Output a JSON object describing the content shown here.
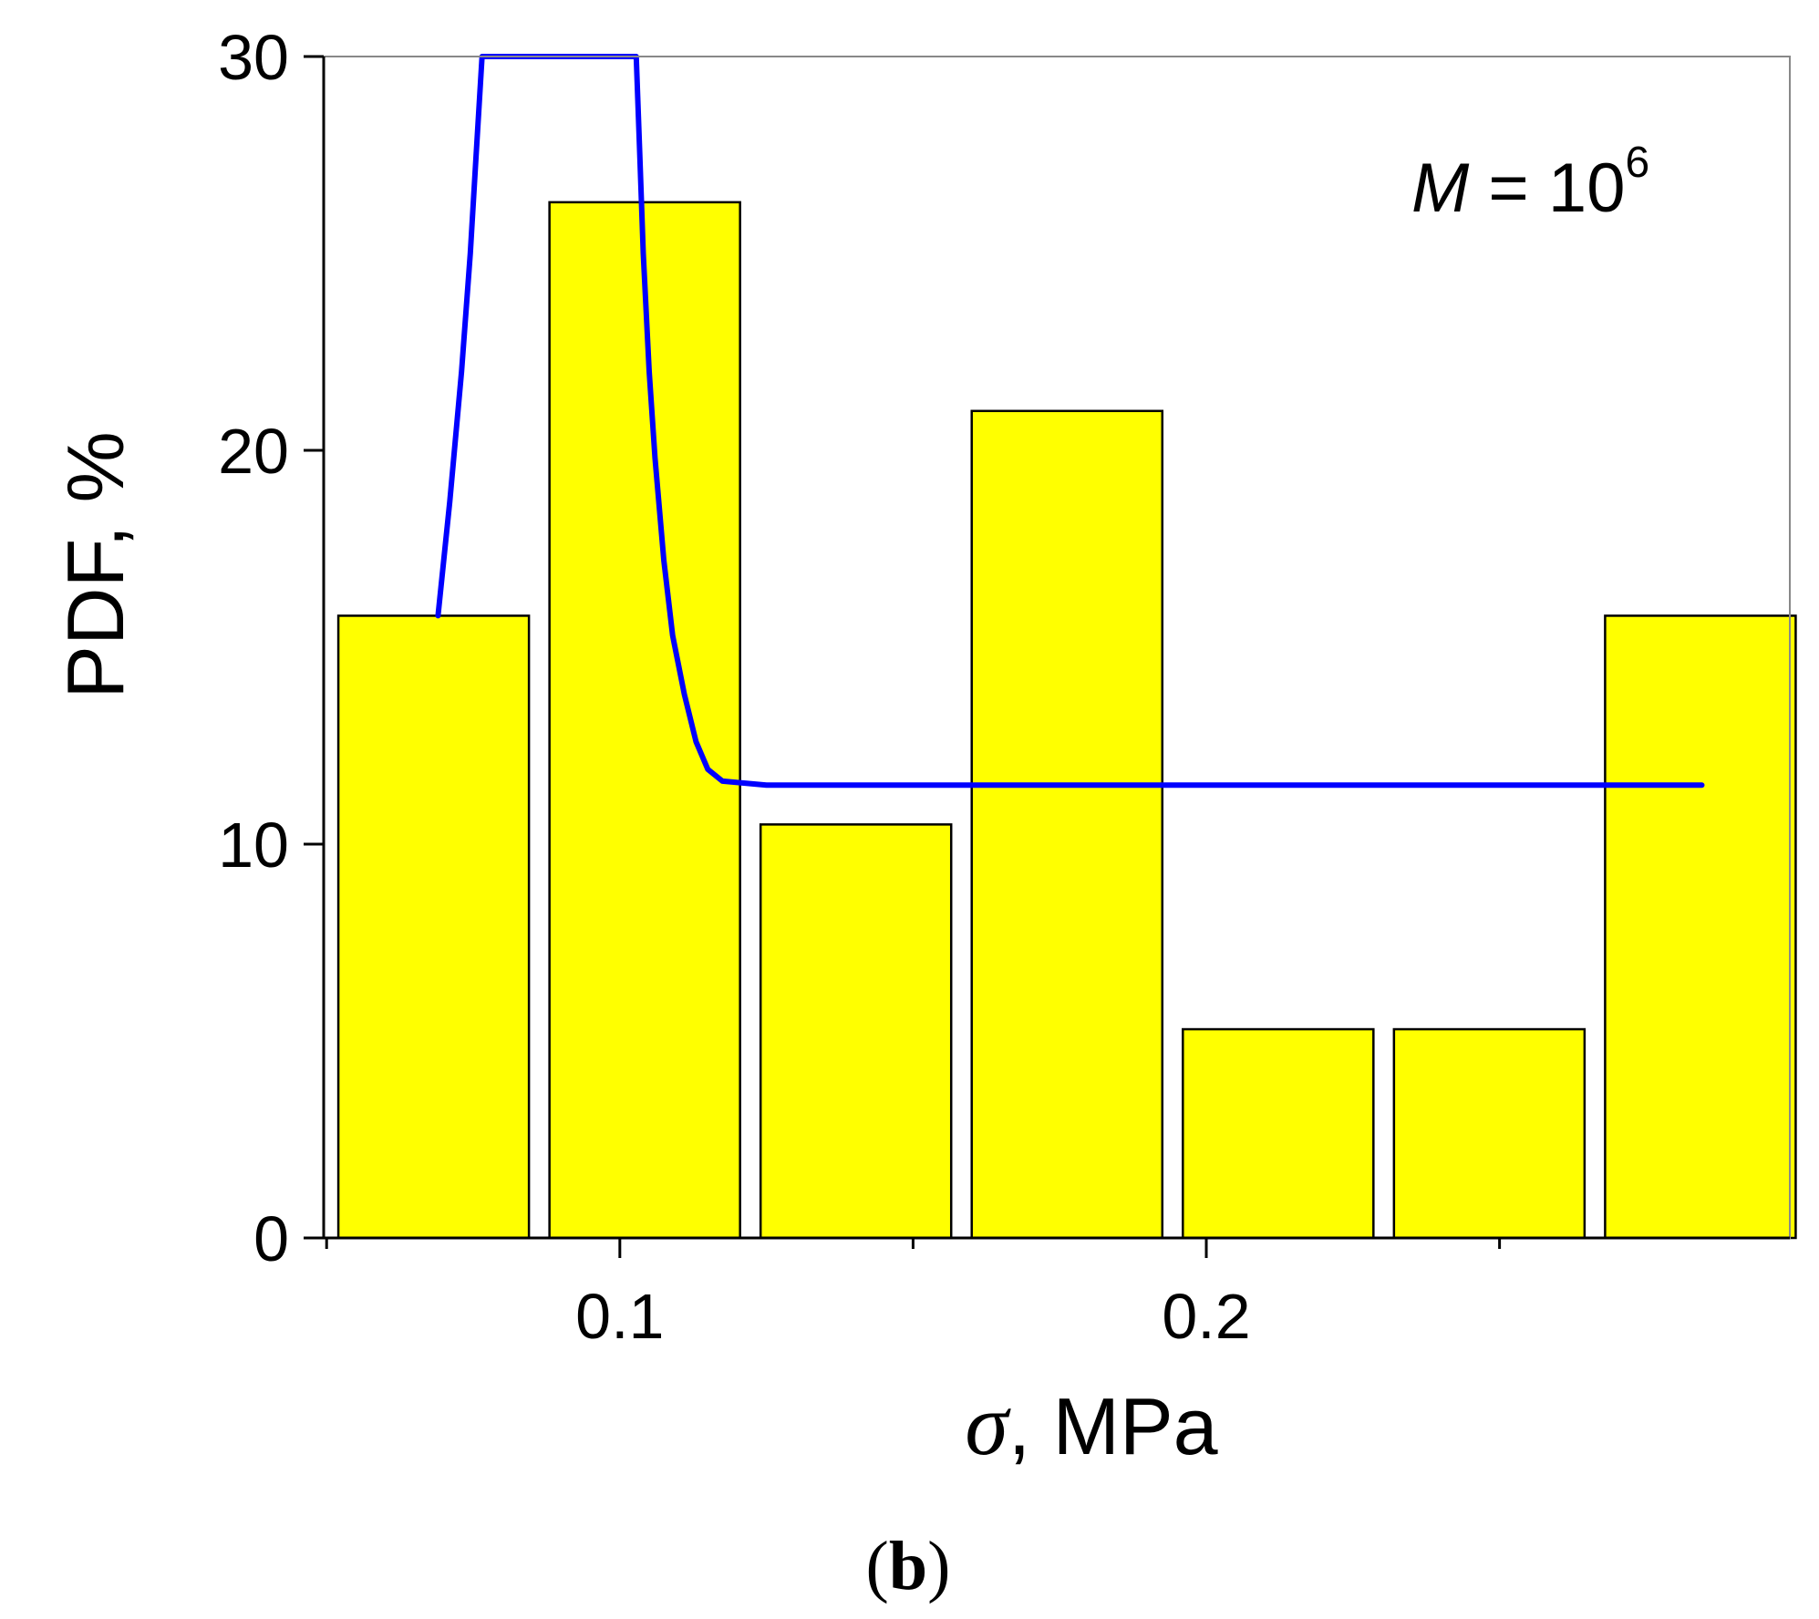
{
  "chart_data": {
    "type": "bar",
    "title": "",
    "xlabel_symbol": "σ",
    "xlabel_rest": ", MPa",
    "ylabel": "PDF, %",
    "xlim": [
      0.0495,
      0.2995
    ],
    "ylim": [
      0,
      30
    ],
    "xticks": [
      0.1,
      0.2
    ],
    "xtick_labels": [
      "0.1",
      "0.2"
    ],
    "xticks_minor": [
      0.05,
      0.15,
      0.25
    ],
    "yticks": [
      0,
      10,
      20,
      30
    ],
    "ytick_labels": [
      "0",
      "10",
      "20",
      "30"
    ],
    "bins": [
      {
        "x0": 0.052,
        "x1": 0.0845,
        "value": 15.8
      },
      {
        "x0": 0.088,
        "x1": 0.1205,
        "value": 26.3
      },
      {
        "x0": 0.124,
        "x1": 0.1565,
        "value": 10.5
      },
      {
        "x0": 0.16,
        "x1": 0.1925,
        "value": 21.0
      },
      {
        "x0": 0.196,
        "x1": 0.2285,
        "value": 5.3
      },
      {
        "x0": 0.232,
        "x1": 0.2645,
        "value": 5.3
      },
      {
        "x0": 0.268,
        "x1": 0.3005,
        "value": 15.8
      }
    ],
    "bar_color": "#ffff00",
    "bar_edge_color": "#000000",
    "fit_curve": {
      "color": "#0000ff",
      "points": [
        [
          0.069,
          15.8
        ],
        [
          0.071,
          18.7
        ],
        [
          0.073,
          22.0
        ],
        [
          0.0745,
          25.0
        ],
        [
          0.0755,
          27.5
        ],
        [
          0.0765,
          30.0
        ],
        [
          0.1028,
          30.0
        ],
        [
          0.1034,
          27.5
        ],
        [
          0.104,
          25.0
        ],
        [
          0.105,
          22.0
        ],
        [
          0.106,
          19.8
        ],
        [
          0.1075,
          17.2
        ],
        [
          0.109,
          15.3
        ],
        [
          0.111,
          13.8
        ],
        [
          0.113,
          12.6
        ],
        [
          0.115,
          11.9
        ],
        [
          0.1175,
          11.6
        ],
        [
          0.125,
          11.5
        ],
        [
          0.15,
          11.5
        ],
        [
          0.2,
          11.5
        ],
        [
          0.25,
          11.5
        ],
        [
          0.2845,
          11.5
        ]
      ]
    },
    "annotation": {
      "symbol": "M",
      "equals": " = 10",
      "superscript": "6"
    },
    "panel_label": {
      "open": "(",
      "letter": "b",
      "close": ")"
    }
  }
}
